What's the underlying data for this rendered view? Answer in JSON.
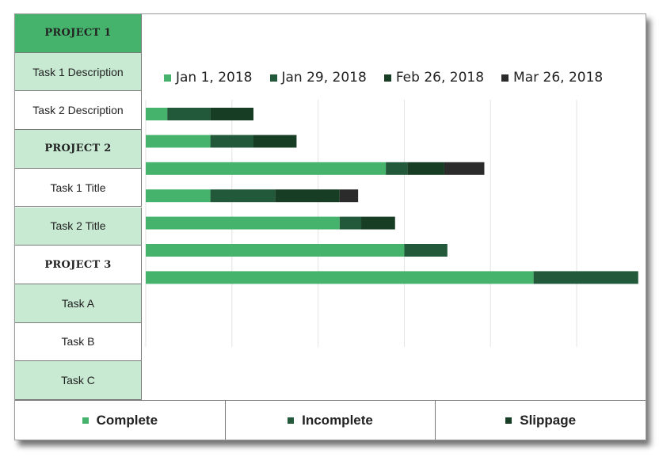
{
  "rows": [
    {
      "label": "PROJECT 1",
      "type": "project",
      "bg": "#45b36b"
    },
    {
      "label": "Task 1 Description",
      "type": "task",
      "bg": "#c8ead3"
    },
    {
      "label": "Task 2 Description",
      "type": "task",
      "bg": "#ffffff"
    },
    {
      "label": "PROJECT 2",
      "type": "project",
      "bg": "#c8ead3"
    },
    {
      "label": "Task 1 Title",
      "type": "task",
      "bg": "#ffffff"
    },
    {
      "label": "Task 2 Title",
      "type": "task",
      "bg": "#c8ead3"
    },
    {
      "label": "PROJECT 3",
      "type": "project",
      "bg": "#ffffff"
    },
    {
      "label": "Task A",
      "type": "task",
      "bg": "#c8ead3"
    },
    {
      "label": "Task B",
      "type": "task",
      "bg": "#ffffff"
    },
    {
      "label": "Task C",
      "type": "task",
      "bg": "#c8ead3"
    }
  ],
  "bottom_legend": [
    {
      "label": "Complete",
      "color": "#45b36b"
    },
    {
      "label": "Incomplete",
      "color": "#21593a"
    },
    {
      "label": "Slippage",
      "color": "#173d24"
    }
  ],
  "chart_data": {
    "type": "bar",
    "orientation": "horizontal",
    "stacked": true,
    "series_names": [
      "Jan 1, 2018",
      "Jan 29, 2018",
      "Feb 26, 2018",
      "Mar 26, 2018"
    ],
    "series_colors": [
      "#45b36b",
      "#21593a",
      "#173d24",
      "#2b2b2b"
    ],
    "xlim": [
      "2018-01-01",
      "2018-06-08"
    ],
    "gridlines_days": 28,
    "legend_position": "top",
    "tasks": [
      {
        "start": "2018-01-01",
        "segments_days": [
          7,
          14,
          14,
          0
        ]
      },
      {
        "start": "2018-01-01",
        "segments_days": [
          21,
          14,
          14,
          0
        ]
      },
      {
        "start": "2018-01-01",
        "segments_days": [
          78,
          7,
          12,
          13
        ]
      },
      {
        "start": "2018-01-01",
        "segments_days": [
          21,
          21,
          21,
          6
        ]
      },
      {
        "start": "2018-01-01",
        "segments_days": [
          63,
          7,
          11,
          0
        ]
      },
      {
        "start": "2018-01-01",
        "segments_days": [
          84,
          14,
          0,
          0
        ]
      },
      {
        "start": "2018-01-01",
        "segments_days": [
          126,
          34,
          0,
          0
        ]
      }
    ]
  }
}
